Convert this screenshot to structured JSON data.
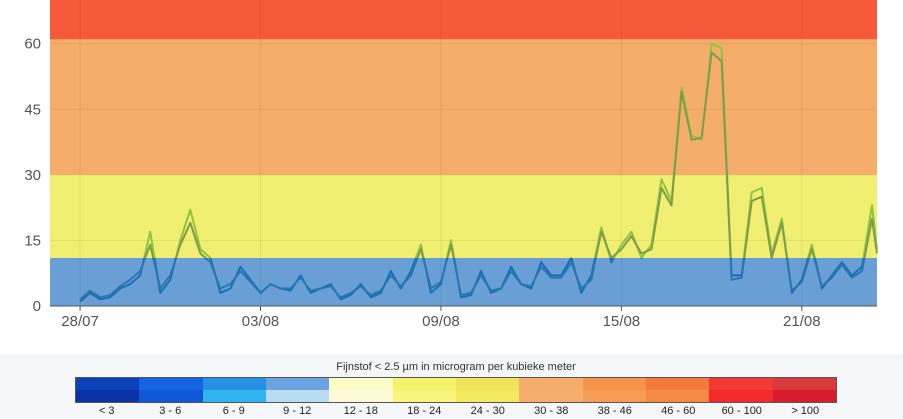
{
  "chart_data": {
    "type": "line",
    "title": "",
    "xlabel": "",
    "ylabel": "",
    "ylim": [
      0,
      70
    ],
    "yticks": [
      0,
      15,
      30,
      45,
      60
    ],
    "xlim": [
      "2022-07-27",
      "2022-08-23"
    ],
    "xticks": [
      {
        "label": "28/07",
        "date": "2022-07-28"
      },
      {
        "label": "03/08",
        "date": "2022-08-03"
      },
      {
        "label": "09/08",
        "date": "2022-08-09"
      },
      {
        "label": "15/08",
        "date": "2022-08-15"
      },
      {
        "label": "21/08",
        "date": "2022-08-21"
      }
    ],
    "bands": [
      {
        "from": 0,
        "to": 11,
        "color": "#6a9fd6"
      },
      {
        "from": 11,
        "to": 30,
        "color": "#f0ef72"
      },
      {
        "from": 30,
        "to": 61,
        "color": "#f5ad6b"
      },
      {
        "from": 61,
        "to": 70,
        "color": "#f55a3a"
      }
    ],
    "grid": true,
    "series": [
      {
        "color_low": "#1a6fb0",
        "color_high": "#8cc63f",
        "points": [
          [
            "2022-07-28T00:00",
            1
          ],
          [
            "2022-07-28T08:00",
            3
          ],
          [
            "2022-07-28T16:00",
            1.5
          ],
          [
            "2022-07-29T00:00",
            2
          ],
          [
            "2022-07-29T08:00",
            4
          ],
          [
            "2022-07-29T16:00",
            5
          ],
          [
            "2022-07-30T00:00",
            7
          ],
          [
            "2022-07-30T08:00",
            17
          ],
          [
            "2022-07-30T16:00",
            3
          ],
          [
            "2022-07-31T00:00",
            6
          ],
          [
            "2022-07-31T08:00",
            15
          ],
          [
            "2022-07-31T16:00",
            22
          ],
          [
            "2022-08-01T00:00",
            13
          ],
          [
            "2022-08-01T08:00",
            11
          ],
          [
            "2022-08-01T16:00",
            3
          ],
          [
            "2022-08-02T00:00",
            4
          ],
          [
            "2022-08-02T08:00",
            9
          ],
          [
            "2022-08-02T16:00",
            6
          ],
          [
            "2022-08-03T00:00",
            3
          ],
          [
            "2022-08-03T08:00",
            5
          ],
          [
            "2022-08-03T16:00",
            4
          ],
          [
            "2022-08-04T00:00",
            3.5
          ],
          [
            "2022-08-04T08:00",
            7
          ],
          [
            "2022-08-04T16:00",
            3
          ],
          [
            "2022-08-05T00:00",
            4
          ],
          [
            "2022-08-05T08:00",
            5
          ],
          [
            "2022-08-05T16:00",
            1.5
          ],
          [
            "2022-08-06T00:00",
            2.5
          ],
          [
            "2022-08-06T08:00",
            5
          ],
          [
            "2022-08-06T16:00",
            2
          ],
          [
            "2022-08-07T00:00",
            3
          ],
          [
            "2022-08-07T08:00",
            8
          ],
          [
            "2022-08-07T16:00",
            4
          ],
          [
            "2022-08-08T00:00",
            8
          ],
          [
            "2022-08-08T08:00",
            14
          ],
          [
            "2022-08-08T16:00",
            3
          ],
          [
            "2022-08-09T00:00",
            5
          ],
          [
            "2022-08-09T08:00",
            15
          ],
          [
            "2022-08-09T16:00",
            2
          ],
          [
            "2022-08-10T00:00",
            2.5
          ],
          [
            "2022-08-10T08:00",
            8
          ],
          [
            "2022-08-10T16:00",
            3
          ],
          [
            "2022-08-11T00:00",
            4
          ],
          [
            "2022-08-11T08:00",
            9
          ],
          [
            "2022-08-11T16:00",
            5
          ],
          [
            "2022-08-12T00:00",
            4
          ],
          [
            "2022-08-12T08:00",
            10
          ],
          [
            "2022-08-12T16:00",
            7
          ],
          [
            "2022-08-13T00:00",
            7
          ],
          [
            "2022-08-13T08:00",
            11
          ],
          [
            "2022-08-13T16:00",
            3
          ],
          [
            "2022-08-14T00:00",
            7
          ],
          [
            "2022-08-14T08:00",
            18
          ],
          [
            "2022-08-14T16:00",
            10
          ],
          [
            "2022-08-15T00:00",
            14
          ],
          [
            "2022-08-15T08:00",
            17
          ],
          [
            "2022-08-15T16:00",
            11
          ],
          [
            "2022-08-16T00:00",
            14
          ],
          [
            "2022-08-16T08:00",
            29
          ],
          [
            "2022-08-16T16:00",
            24
          ],
          [
            "2022-08-17T00:00",
            50
          ],
          [
            "2022-08-17T08:00",
            39
          ],
          [
            "2022-08-17T16:00",
            38
          ],
          [
            "2022-08-18T00:00",
            60
          ],
          [
            "2022-08-18T08:00",
            59
          ],
          [
            "2022-08-18T16:00",
            7
          ],
          [
            "2022-08-19T00:00",
            7
          ],
          [
            "2022-08-19T08:00",
            26
          ],
          [
            "2022-08-19T16:00",
            27
          ],
          [
            "2022-08-20T00:00",
            12
          ],
          [
            "2022-08-20T08:00",
            20
          ],
          [
            "2022-08-20T16:00",
            3
          ],
          [
            "2022-08-21T00:00",
            6
          ],
          [
            "2022-08-21T08:00",
            14
          ],
          [
            "2022-08-21T16:00",
            4
          ],
          [
            "2022-08-22T00:00",
            7
          ],
          [
            "2022-08-22T08:00",
            10
          ],
          [
            "2022-08-22T16:00",
            7
          ],
          [
            "2022-08-23T00:00",
            9
          ],
          [
            "2022-08-23T08:00",
            23
          ],
          [
            "2022-08-23T12:00",
            13
          ]
        ]
      },
      {
        "color_low": "#2777b0",
        "color_high": "#7f9c4a",
        "points": [
          [
            "2022-07-28T00:00",
            1.5
          ],
          [
            "2022-07-28T08:00",
            3.5
          ],
          [
            "2022-07-28T16:00",
            2
          ],
          [
            "2022-07-29T00:00",
            2.5
          ],
          [
            "2022-07-29T08:00",
            4.5
          ],
          [
            "2022-07-29T16:00",
            6
          ],
          [
            "2022-07-30T00:00",
            8
          ],
          [
            "2022-07-30T08:00",
            14
          ],
          [
            "2022-07-30T16:00",
            4
          ],
          [
            "2022-07-31T00:00",
            7
          ],
          [
            "2022-07-31T08:00",
            14
          ],
          [
            "2022-07-31T16:00",
            19
          ],
          [
            "2022-08-01T00:00",
            12
          ],
          [
            "2022-08-01T08:00",
            10
          ],
          [
            "2022-08-01T16:00",
            4
          ],
          [
            "2022-08-02T00:00",
            5
          ],
          [
            "2022-08-02T08:00",
            8
          ],
          [
            "2022-08-02T16:00",
            5.5
          ],
          [
            "2022-08-03T00:00",
            3
          ],
          [
            "2022-08-03T08:00",
            5
          ],
          [
            "2022-08-03T16:00",
            4
          ],
          [
            "2022-08-04T00:00",
            4
          ],
          [
            "2022-08-04T08:00",
            6.5
          ],
          [
            "2022-08-04T16:00",
            3.5
          ],
          [
            "2022-08-05T00:00",
            4
          ],
          [
            "2022-08-05T08:00",
            4.5
          ],
          [
            "2022-08-05T16:00",
            2
          ],
          [
            "2022-08-06T00:00",
            3
          ],
          [
            "2022-08-06T08:00",
            4.5
          ],
          [
            "2022-08-06T16:00",
            2.5
          ],
          [
            "2022-08-07T00:00",
            3.5
          ],
          [
            "2022-08-07T08:00",
            7
          ],
          [
            "2022-08-07T16:00",
            4.5
          ],
          [
            "2022-08-08T00:00",
            7
          ],
          [
            "2022-08-08T08:00",
            13
          ],
          [
            "2022-08-08T16:00",
            4
          ],
          [
            "2022-08-09T00:00",
            5.5
          ],
          [
            "2022-08-09T08:00",
            14
          ],
          [
            "2022-08-09T16:00",
            2.5
          ],
          [
            "2022-08-10T00:00",
            3
          ],
          [
            "2022-08-10T08:00",
            7
          ],
          [
            "2022-08-10T16:00",
            3.5
          ],
          [
            "2022-08-11T00:00",
            4
          ],
          [
            "2022-08-11T08:00",
            8
          ],
          [
            "2022-08-11T16:00",
            5
          ],
          [
            "2022-08-12T00:00",
            4.5
          ],
          [
            "2022-08-12T08:00",
            9
          ],
          [
            "2022-08-12T16:00",
            6.5
          ],
          [
            "2022-08-13T00:00",
            6.5
          ],
          [
            "2022-08-13T08:00",
            10
          ],
          [
            "2022-08-13T16:00",
            4
          ],
          [
            "2022-08-14T00:00",
            6
          ],
          [
            "2022-08-14T08:00",
            17
          ],
          [
            "2022-08-14T16:00",
            11
          ],
          [
            "2022-08-15T00:00",
            13
          ],
          [
            "2022-08-15T08:00",
            16
          ],
          [
            "2022-08-15T16:00",
            12
          ],
          [
            "2022-08-16T00:00",
            13
          ],
          [
            "2022-08-16T08:00",
            27
          ],
          [
            "2022-08-16T16:00",
            23
          ],
          [
            "2022-08-17T00:00",
            49
          ],
          [
            "2022-08-17T08:00",
            38
          ],
          [
            "2022-08-17T16:00",
            38.5
          ],
          [
            "2022-08-18T00:00",
            58
          ],
          [
            "2022-08-18T08:00",
            56
          ],
          [
            "2022-08-18T16:00",
            6
          ],
          [
            "2022-08-19T00:00",
            6.5
          ],
          [
            "2022-08-19T08:00",
            24
          ],
          [
            "2022-08-19T16:00",
            25
          ],
          [
            "2022-08-20T00:00",
            11
          ],
          [
            "2022-08-20T08:00",
            19
          ],
          [
            "2022-08-20T16:00",
            3.5
          ],
          [
            "2022-08-21T00:00",
            5.5
          ],
          [
            "2022-08-21T08:00",
            13
          ],
          [
            "2022-08-21T16:00",
            4.5
          ],
          [
            "2022-08-22T00:00",
            6.5
          ],
          [
            "2022-08-22T08:00",
            9.5
          ],
          [
            "2022-08-22T16:00",
            6.5
          ],
          [
            "2022-08-23T00:00",
            8
          ],
          [
            "2022-08-23T08:00",
            20
          ],
          [
            "2022-08-23T12:00",
            12
          ]
        ]
      }
    ]
  },
  "legend": {
    "title": "Fijnstof < 2.5 µm in microgram per kubieke meter",
    "items": [
      {
        "label": "< 3",
        "color_top": "#0b42b8",
        "color_bottom": "#0a33a6"
      },
      {
        "label": "3 - 6",
        "color_top": "#1565e0",
        "color_bottom": "#0e58d8"
      },
      {
        "label": "6 - 9",
        "color_top": "#2490e6",
        "color_bottom": "#2fb4f0"
      },
      {
        "label": "9 - 12",
        "color_top": "#6aa3df",
        "color_bottom": "#b9dcf3"
      },
      {
        "label": "12 - 18",
        "color_top": "#fbfbc4",
        "color_bottom": "#fdfbd6"
      },
      {
        "label": "18 - 24",
        "color_top": "#f6f26a",
        "color_bottom": "#f8f47c"
      },
      {
        "label": "24 - 30",
        "color_top": "#efe45a",
        "color_bottom": "#f3ea5e"
      },
      {
        "label": "30 - 38",
        "color_top": "#f5ad6b",
        "color_bottom": "#f6ae6e"
      },
      {
        "label": "38 - 46",
        "color_top": "#f5934c",
        "color_bottom": "#f79c56"
      },
      {
        "label": "46 - 60",
        "color_top": "#f37a3a",
        "color_bottom": "#f58a46"
      },
      {
        "label": "60 - 100",
        "color_top": "#f13a33",
        "color_bottom": "#f32a2a"
      },
      {
        "label": "> 100",
        "color_top": "#d83a3e",
        "color_bottom": "#d91c2d"
      }
    ]
  }
}
